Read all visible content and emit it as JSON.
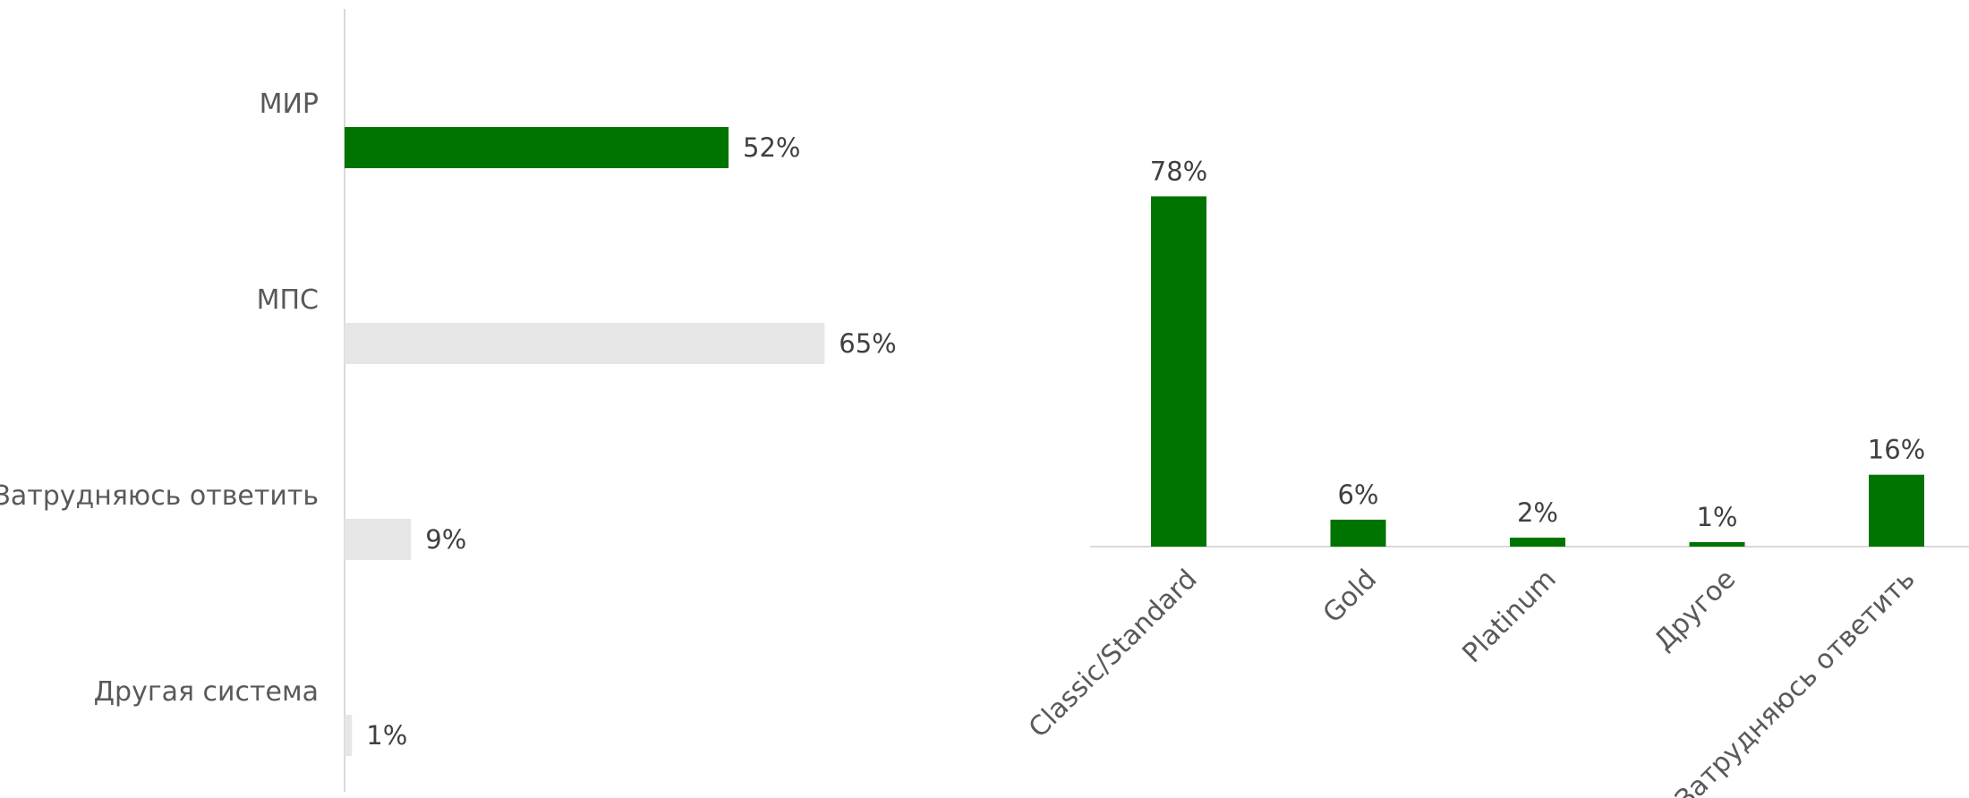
{
  "colors": {
    "accent": "#007400",
    "muted": "#e6e6e6",
    "axis": "#d9d9d9"
  },
  "chart_data": [
    {
      "type": "bar",
      "orientation": "horizontal",
      "title": "",
      "xlabel": "",
      "ylabel": "",
      "categories": [
        "МИР",
        "МПС",
        "Затрудняюсь ответить",
        "Другая система"
      ],
      "values": [
        52,
        65,
        9,
        1
      ],
      "value_labels": [
        "52%",
        "65%",
        "9%",
        "1%"
      ],
      "highlight": [
        true,
        false,
        false,
        false
      ],
      "unit": "%",
      "xlim": [
        0,
        100
      ],
      "grid": false,
      "legend": "none"
    },
    {
      "type": "bar",
      "orientation": "vertical",
      "title": "",
      "xlabel": "",
      "ylabel": "",
      "categories": [
        "Classic/Standard",
        "Gold",
        "Platinum",
        "Другое",
        "Затрудняюсь ответить"
      ],
      "values": [
        78,
        6,
        2,
        1,
        16
      ],
      "value_labels": [
        "78%",
        "6%",
        "2%",
        "1%",
        "16%"
      ],
      "unit": "%",
      "ylim": [
        0,
        100
      ],
      "grid": false,
      "legend": "none"
    }
  ]
}
